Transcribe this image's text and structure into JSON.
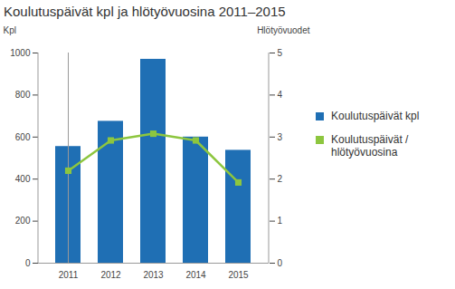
{
  "chart_data": {
    "type": "bar",
    "title": "Koulutuspäivät kpl ja hlötyövuosina 2011–2015",
    "categories": [
      "2011",
      "2012",
      "2013",
      "2014",
      "2015"
    ],
    "ylabel": "Kpl",
    "y2label": "Hlötyövuodet",
    "series": [
      {
        "name": "Koulutuspäivät kpl",
        "type": "bar",
        "color": "#1f6fb4",
        "values": [
          555,
          675,
          970,
          600,
          537
        ]
      },
      {
        "name": "Koulutuspäivät / hlötyövuosina",
        "type": "line",
        "axis": "y2",
        "color": "#8dc63f",
        "marker": "square",
        "values": [
          2.2,
          2.92,
          3.08,
          2.92,
          1.92
        ]
      }
    ],
    "ylim": [
      0,
      1000
    ],
    "yticks": [
      0,
      200,
      400,
      600,
      800,
      1000
    ],
    "y2lim": [
      0,
      5
    ],
    "y2ticks": [
      0,
      1,
      2,
      3,
      4,
      5
    ],
    "legend": "right",
    "grid": false
  }
}
